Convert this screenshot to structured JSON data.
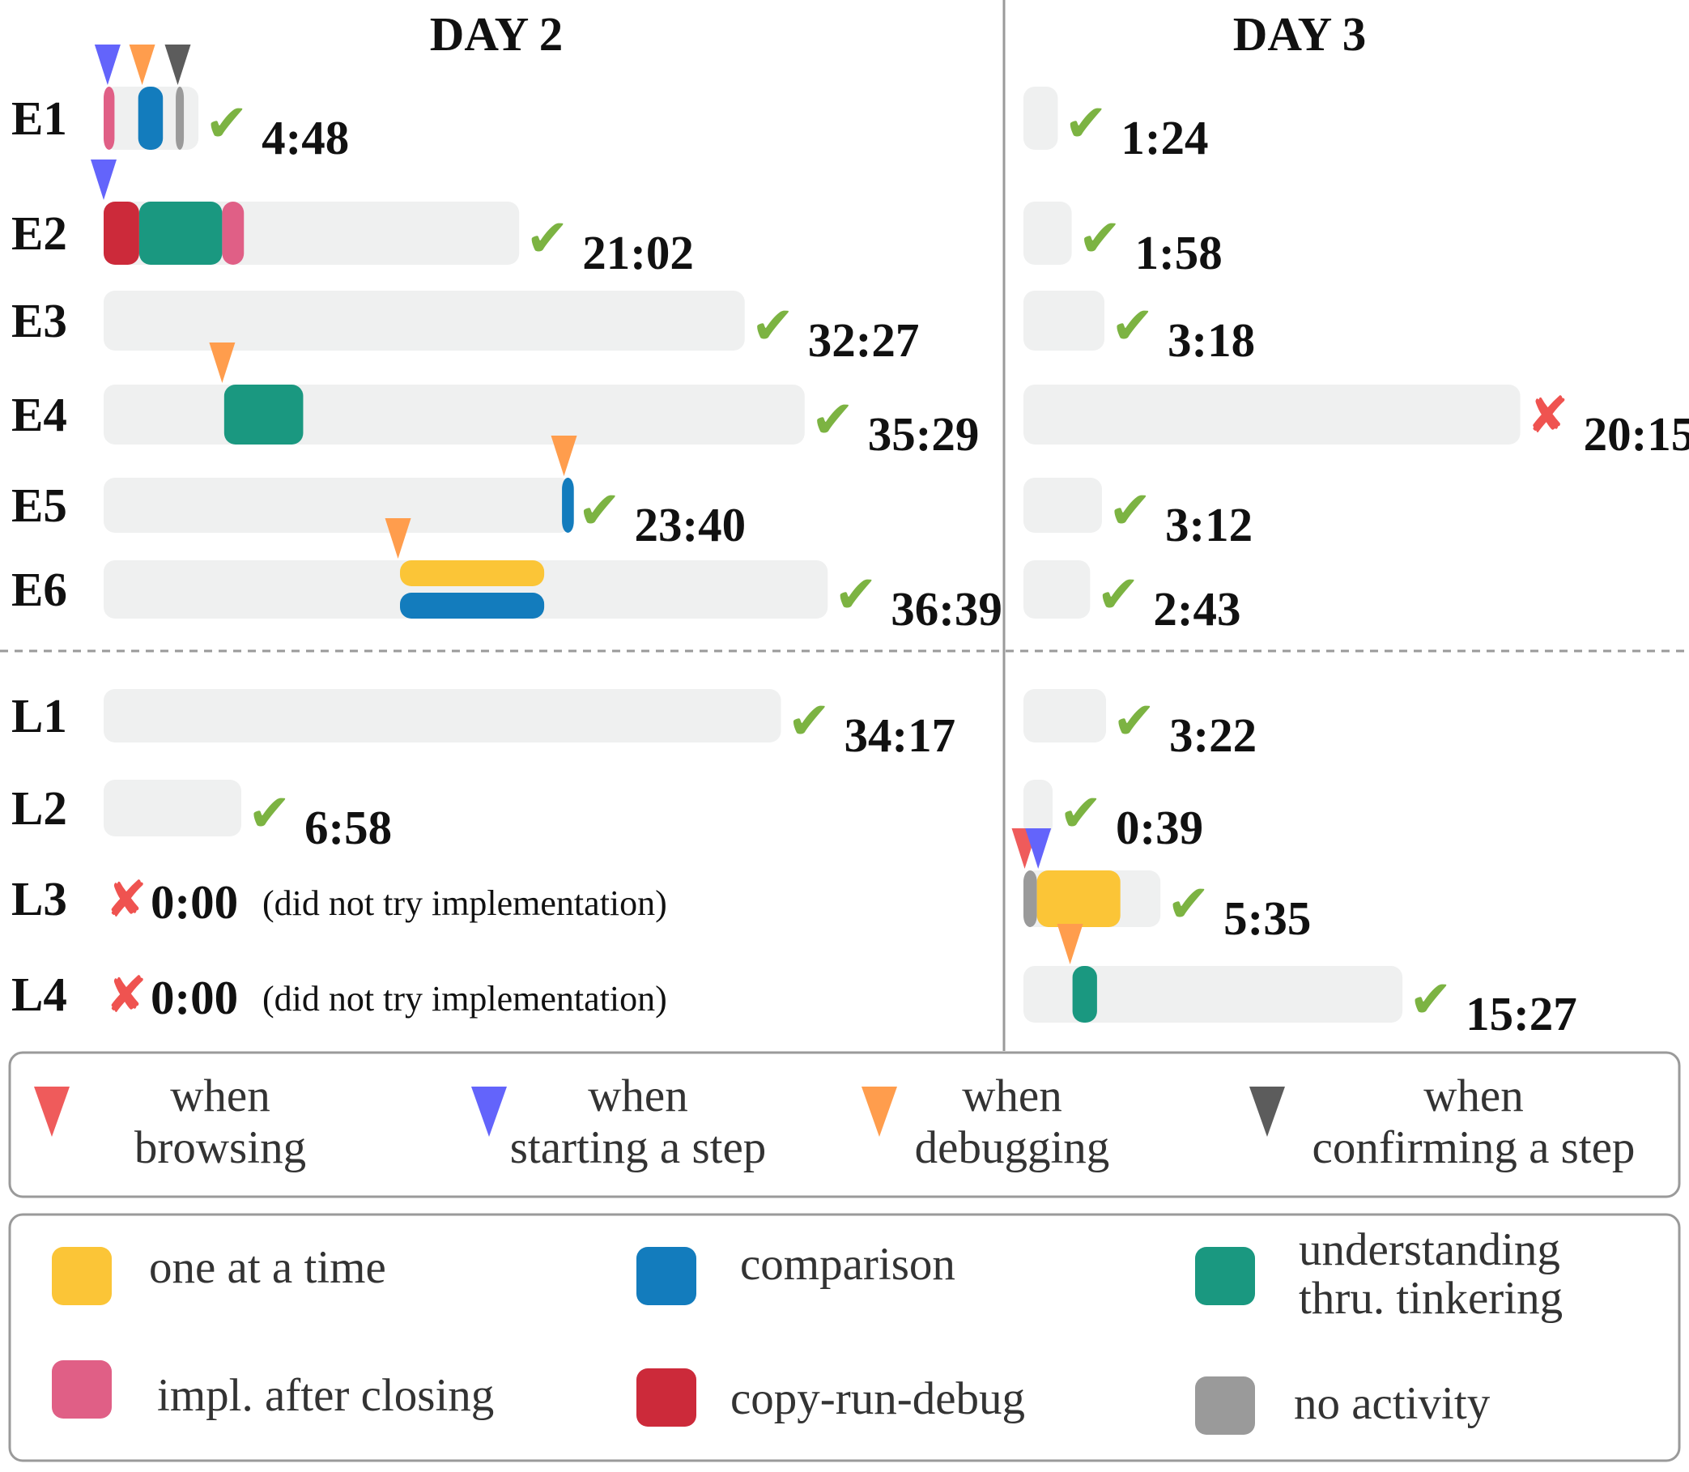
{
  "chart_data": {
    "type": "timeline",
    "days": [
      "DAY 2",
      "DAY 3"
    ],
    "rows": [
      {
        "id": "E1",
        "day2": {
          "time": "4:48",
          "status": "check",
          "segments": [
            {
              "cat": "impl",
              "start": 0.0,
              "end": 0.55
            },
            {
              "cat": "comparison",
              "start": 1.75,
              "end": 3.0
            },
            {
              "cat": "none",
              "start": 3.65,
              "end": 4.0
            }
          ],
          "markers": [
            {
              "type": "starting",
              "t": 0.2
            },
            {
              "type": "debugging",
              "t": 1.95
            },
            {
              "type": "confirming",
              "t": 3.75
            }
          ]
        },
        "day3": {
          "time": "1:24",
          "status": "check",
          "segments": [],
          "markers": []
        }
      },
      {
        "id": "E2",
        "day2": {
          "time": "21:02",
          "status": "check",
          "segments": [
            {
              "cat": "copyrun",
              "start": 0.0,
              "end": 1.8
            },
            {
              "cat": "tinkering",
              "start": 1.8,
              "end": 6.0
            },
            {
              "cat": "impl",
              "start": 6.0,
              "end": 7.1
            }
          ],
          "markers": [
            {
              "type": "starting",
              "t": 0.0
            }
          ]
        },
        "day3": {
          "time": "1:58",
          "status": "check",
          "segments": [],
          "markers": []
        }
      },
      {
        "id": "E3",
        "day2": {
          "time": "32:27",
          "status": "check",
          "segments": [],
          "markers": []
        },
        "day3": {
          "time": "3:18",
          "status": "check",
          "segments": [],
          "markers": []
        }
      },
      {
        "id": "E4",
        "day2": {
          "time": "35:29",
          "status": "check",
          "segments": [
            {
              "cat": "tinkering",
              "start": 6.1,
              "end": 10.1
            }
          ],
          "markers": [
            {
              "type": "debugging",
              "t": 6.0
            }
          ]
        },
        "day3": {
          "time": "20:15",
          "status": "cross",
          "segments": [],
          "markers": []
        }
      },
      {
        "id": "E5",
        "day2": {
          "time": "23:40",
          "status": "check",
          "segments": [
            {
              "cat": "comparison",
              "start": 23.2,
              "end": 23.8
            }
          ],
          "markers": [
            {
              "type": "debugging",
              "t": 23.3
            }
          ]
        },
        "day3": {
          "time": "3:12",
          "status": "check",
          "segments": [],
          "markers": []
        }
      },
      {
        "id": "E6",
        "day2": {
          "time": "36:39",
          "status": "check",
          "segments": [
            {
              "cat": "onetime",
              "start": 15.0,
              "end": 22.3,
              "lane": "top"
            },
            {
              "cat": "comparison",
              "start": 15.0,
              "end": 22.3,
              "lane": "bottom"
            }
          ],
          "markers": [
            {
              "type": "debugging",
              "t": 14.9
            }
          ]
        },
        "day3": {
          "time": "2:43",
          "status": "check",
          "segments": [],
          "markers": []
        }
      },
      {
        "id": "L1",
        "day2": {
          "time": "34:17",
          "status": "check",
          "segments": [],
          "markers": []
        },
        "day3": {
          "time": "3:22",
          "status": "check",
          "segments": [],
          "markers": []
        }
      },
      {
        "id": "L2",
        "day2": {
          "time": "6:58",
          "status": "check",
          "segments": [],
          "markers": []
        },
        "day3": {
          "time": "0:39",
          "status": "check",
          "segments": [],
          "markers": []
        }
      },
      {
        "id": "L3",
        "day2": {
          "time": "0:00",
          "status": "cross",
          "note": "(did not try implementation)",
          "segments": [],
          "markers": []
        },
        "day3": {
          "time": "5:35",
          "status": "check",
          "segments": [
            {
              "cat": "none",
              "start": 0.0,
              "end": 0.55
            },
            {
              "cat": "onetime",
              "start": 0.55,
              "end": 3.95
            }
          ],
          "markers": [
            {
              "type": "browsing",
              "t": 0.05
            },
            {
              "type": "starting",
              "t": 0.6
            }
          ]
        }
      },
      {
        "id": "L4",
        "day2": {
          "time": "0:00",
          "status": "cross",
          "note": "(did not try implementation)",
          "segments": [],
          "markers": []
        },
        "day3": {
          "time": "15:27",
          "status": "check",
          "segments": [
            {
              "cat": "tinkering",
              "start": 2.0,
              "end": 3.0
            }
          ],
          "markers": [
            {
              "type": "debugging",
              "t": 1.9
            }
          ]
        }
      }
    ],
    "marker_legend": [
      {
        "type": "browsing",
        "line1": "when",
        "line2": "browsing"
      },
      {
        "type": "starting",
        "line1": "when",
        "line2": "starting a step"
      },
      {
        "type": "debugging",
        "line1": "when",
        "line2": "debugging"
      },
      {
        "type": "confirming",
        "line1": "when",
        "line2": "confirming a step"
      }
    ],
    "category_legend": [
      {
        "cat": "onetime",
        "lines": [
          "one at a time"
        ]
      },
      {
        "cat": "comparison",
        "lines": [
          "comparison"
        ]
      },
      {
        "cat": "tinkering",
        "lines": [
          "understanding",
          "thru. tinkering"
        ]
      },
      {
        "cat": "impl",
        "lines": [
          "impl. after closing"
        ]
      },
      {
        "cat": "copyrun",
        "lines": [
          "copy-run-debug"
        ]
      },
      {
        "cat": "none",
        "lines": [
          "no activity"
        ]
      }
    ],
    "colors": {
      "bar_bg": "#eff0f0",
      "onetime": "#fbc537",
      "comparison": "#137cbd",
      "tinkering": "#1a9880",
      "impl": "#e05f86",
      "copyrun": "#cc2a3a",
      "none": "#9a9a9a",
      "browsing": "#ef5b5b",
      "starting": "#6364fb",
      "debugging": "#ff9d4d",
      "confirming": "#5c5c5c",
      "check": "#7cb342",
      "cross": "#ef5350"
    }
  }
}
